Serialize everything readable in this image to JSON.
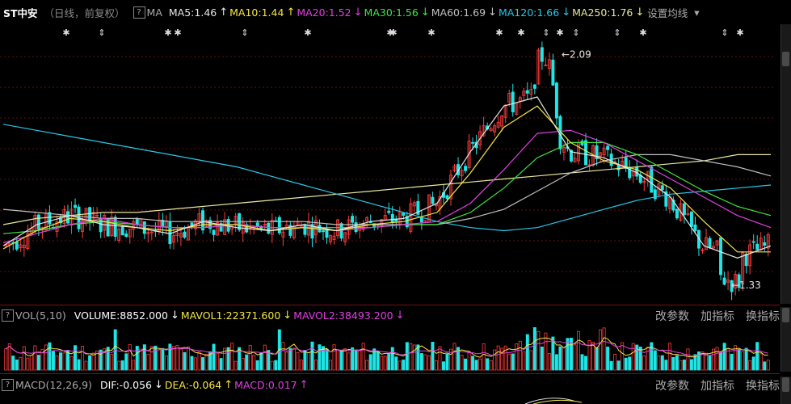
{
  "header": {
    "title": "ST中安",
    "subtitle": "（日线，前复权）",
    "help": "?",
    "ma_label": "MA",
    "items": [
      {
        "label": "MA5:1.46",
        "color": "#e6e6e6",
        "arrow": "↑"
      },
      {
        "label": "MA10:1.44",
        "color": "#f5e642",
        "arrow": "↑"
      },
      {
        "label": "MA20:1.52",
        "color": "#e040e0",
        "arrow": "↓"
      },
      {
        "label": "MA30:1.56",
        "color": "#3ee63e",
        "arrow": "↓"
      },
      {
        "label": "MA60:1.69",
        "color": "#c0c0c0",
        "arrow": "↓"
      },
      {
        "label": "MA120:1.66",
        "color": "#28c8e8",
        "arrow": "↓"
      },
      {
        "label": "MA250:1.76",
        "color": "#e8e8a0",
        "arrow": "↓"
      }
    ],
    "settings": "设置均线",
    "dropdown": "▾"
  },
  "volume_panel": {
    "title": "VOL(5,10)",
    "items": [
      {
        "label": "VOLUME:8852.000",
        "color": "#ffffff",
        "arrow": "↓"
      },
      {
        "label": "MAVOL1:22371.600",
        "color": "#f5e642",
        "arrow": "↓"
      },
      {
        "label": "MAVOL2:38493.200",
        "color": "#e040e0",
        "arrow": "↓"
      }
    ],
    "menu": [
      "改参数",
      "加指标",
      "换指标"
    ]
  },
  "macd_panel": {
    "title": "MACD(12,26,9)",
    "items": [
      {
        "label": "DIF:-0.056",
        "color": "#ffffff",
        "arrow": "↓"
      },
      {
        "label": "DEA:-0.064",
        "color": "#f5e642",
        "arrow": "↑"
      },
      {
        "label": "MACD:0.017",
        "color": "#e040e0",
        "arrow": "↑"
      }
    ],
    "menu": [
      "改参数",
      "加指标",
      "换指标"
    ]
  },
  "chart_data": {
    "type": "candlestick",
    "y_range": [
      1.28,
      2.12
    ],
    "high_label": "2.09",
    "low_label": "1.33",
    "colors": {
      "up": "#ff3c3c",
      "down": "#1ee6e6",
      "up_volume": "#ff3c3c",
      "down_volume": "#1ee6e6"
    },
    "event_markers": [
      "✱",
      "⇕",
      "✱",
      "✱",
      "⇕",
      "✱",
      "✱",
      "✱",
      "✱",
      "✱",
      "✱",
      "⇕",
      "✱",
      "⇕",
      "⇕",
      "✱",
      "⇕",
      "✱"
    ],
    "ma_lines": {
      "ma250": {
        "color": "#e8e8a0",
        "points": [
          1.53,
          1.55,
          1.56,
          1.57,
          1.57,
          1.58,
          1.59,
          1.6,
          1.61,
          1.62,
          1.63,
          1.64,
          1.65,
          1.66,
          1.67,
          1.68,
          1.69,
          1.7,
          1.71,
          1.72,
          1.73,
          1.74,
          1.76,
          1.76
        ]
      },
      "ma120": {
        "color": "#28c8e8",
        "points": [
          1.86,
          1.84,
          1.82,
          1.8,
          1.78,
          1.76,
          1.74,
          1.72,
          1.69,
          1.66,
          1.63,
          1.6,
          1.57,
          1.54,
          1.52,
          1.51,
          1.52,
          1.55,
          1.58,
          1.61,
          1.63,
          1.64,
          1.65,
          1.66
        ]
      },
      "ma60": {
        "color": "#c0c0c0",
        "points": [
          1.58,
          1.57,
          1.56,
          1.55,
          1.55,
          1.54,
          1.54,
          1.54,
          1.54,
          1.54,
          1.53,
          1.53,
          1.53,
          1.53,
          1.55,
          1.58,
          1.64,
          1.7,
          1.74,
          1.76,
          1.76,
          1.74,
          1.72,
          1.69
        ]
      },
      "ma30": {
        "color": "#3ee63e",
        "points": [
          1.5,
          1.51,
          1.53,
          1.54,
          1.53,
          1.52,
          1.52,
          1.53,
          1.52,
          1.52,
          1.52,
          1.52,
          1.53,
          1.53,
          1.57,
          1.65,
          1.75,
          1.8,
          1.8,
          1.76,
          1.7,
          1.64,
          1.59,
          1.56
        ]
      },
      "ma20": {
        "color": "#e040e0",
        "points": [
          1.47,
          1.5,
          1.53,
          1.55,
          1.53,
          1.52,
          1.52,
          1.53,
          1.52,
          1.52,
          1.51,
          1.52,
          1.53,
          1.54,
          1.6,
          1.71,
          1.83,
          1.84,
          1.8,
          1.74,
          1.68,
          1.62,
          1.56,
          1.52
        ]
      },
      "ma10": {
        "color": "#f5e642",
        "points": [
          1.45,
          1.51,
          1.55,
          1.54,
          1.52,
          1.51,
          1.53,
          1.53,
          1.51,
          1.52,
          1.51,
          1.53,
          1.54,
          1.57,
          1.7,
          1.85,
          1.92,
          1.8,
          1.74,
          1.71,
          1.65,
          1.54,
          1.44,
          1.44
        ]
      },
      "ma5": {
        "color": "#e6e6e6",
        "points": [
          1.46,
          1.53,
          1.56,
          1.53,
          1.52,
          1.5,
          1.54,
          1.52,
          1.51,
          1.53,
          1.51,
          1.54,
          1.55,
          1.6,
          1.77,
          1.92,
          1.95,
          1.77,
          1.75,
          1.7,
          1.62,
          1.46,
          1.42,
          1.46
        ]
      }
    },
    "volume_ma": {
      "mavol1": {
        "color": "#f5e642"
      },
      "mavol2": {
        "color": "#e040e0"
      }
    },
    "macd_dif_color": "#e6e6e6",
    "macd_dea_color": "#f5e642"
  }
}
